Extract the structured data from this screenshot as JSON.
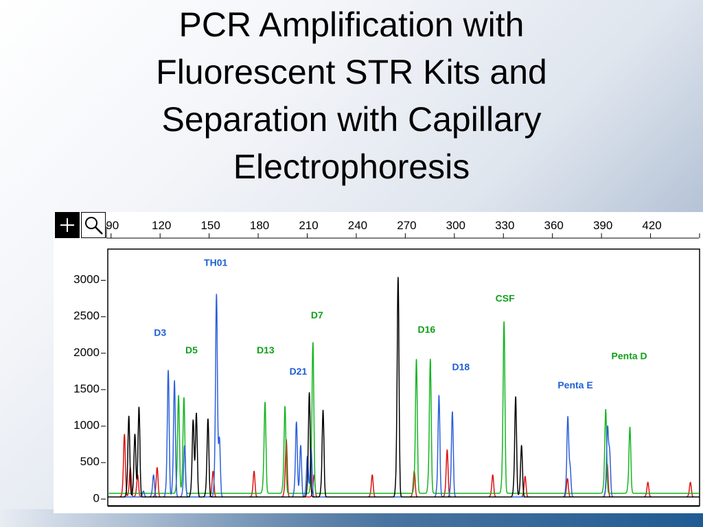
{
  "slide": {
    "title_lines": [
      "PCR Amplification with",
      "Fluorescent STR Kits and",
      "Separation with Capillary",
      "Electrophoresis"
    ]
  },
  "toolbar": {
    "crosshair_tool_icon": "crosshair-icon",
    "zoom_tool_icon": "magnifier-icon"
  },
  "chart_data": {
    "type": "line",
    "title": "",
    "xlabel": "",
    "ylabel": "",
    "x_ticks": [
      90,
      120,
      150,
      180,
      210,
      240,
      270,
      300,
      330,
      360,
      390,
      420
    ],
    "y_ticks": [
      0,
      500,
      1000,
      1500,
      2000,
      2500,
      3000
    ],
    "x_tick_labels": [
      "90",
      "120",
      "150",
      "180",
      "210",
      "240",
      "270",
      "300",
      "330",
      "360",
      "390",
      "420"
    ],
    "y_tick_labels": [
      "0",
      "500",
      "1000",
      "1500",
      "2000",
      "2500",
      "3000"
    ],
    "xlim": [
      88,
      450
    ],
    "ylim": [
      -120,
      3400
    ],
    "grid": false,
    "colors": {
      "blue": "#2b5fd9",
      "green": "#15b521",
      "black": "#000000",
      "red": "#dd1111",
      "blue_label": "#1f5fd6",
      "green_label": "#12a01a"
    },
    "series": [
      {
        "color": "blue",
        "peaks": [
          {
            "x": 109.8,
            "y": 80
          },
          {
            "x": 116.0,
            "y": 300
          },
          {
            "x": 125.0,
            "y": 1720
          },
          {
            "x": 128.8,
            "y": 1580
          },
          {
            "x": 135.0,
            "y": 700
          },
          {
            "x": 154.5,
            "y": 2720
          },
          {
            "x": 156.3,
            "y": 800
          },
          {
            "x": 203.4,
            "y": 1020
          },
          {
            "x": 206.0,
            "y": 700
          },
          {
            "x": 210.1,
            "y": 550
          },
          {
            "x": 212.4,
            "y": 650
          },
          {
            "x": 290.6,
            "y": 1380
          },
          {
            "x": 298.8,
            "y": 1160
          },
          {
            "x": 369.4,
            "y": 1050
          },
          {
            "x": 370.8,
            "y": 400
          },
          {
            "x": 393.7,
            "y": 880
          },
          {
            "x": 395.0,
            "y": 600
          }
        ],
        "baseline": 0
      },
      {
        "color": "green",
        "peaks": [
          {
            "x": 131.3,
            "y": 1330
          },
          {
            "x": 134.6,
            "y": 1300
          },
          {
            "x": 184.2,
            "y": 1240
          },
          {
            "x": 196.4,
            "y": 1180
          },
          {
            "x": 213.5,
            "y": 2050
          },
          {
            "x": 276.8,
            "y": 1820
          },
          {
            "x": 285.3,
            "y": 1820
          },
          {
            "x": 330.4,
            "y": 2330
          },
          {
            "x": 392.6,
            "y": 1140
          },
          {
            "x": 407.4,
            "y": 900
          }
        ],
        "baseline": 50
      },
      {
        "color": "black",
        "peaks": [
          {
            "x": 100.9,
            "y": 1100
          },
          {
            "x": 104.6,
            "y": 850
          },
          {
            "x": 107.1,
            "y": 1220
          },
          {
            "x": 140.2,
            "y": 1020
          },
          {
            "x": 142.2,
            "y": 1140
          },
          {
            "x": 149.3,
            "y": 1060
          },
          {
            "x": 211.3,
            "y": 1420
          },
          {
            "x": 219.7,
            "y": 1180
          },
          {
            "x": 265.6,
            "y": 2980
          },
          {
            "x": 337.5,
            "y": 1360
          },
          {
            "x": 341.1,
            "y": 700
          }
        ],
        "baseline": 0
      },
      {
        "color": "red",
        "peaks": [
          {
            "x": 98.2,
            "y": 850
          },
          {
            "x": 101.8,
            "y": 400
          },
          {
            "x": 106.3,
            "y": 300
          },
          {
            "x": 118.2,
            "y": 400
          },
          {
            "x": 152.4,
            "y": 350
          },
          {
            "x": 177.5,
            "y": 350
          },
          {
            "x": 197.2,
            "y": 780
          },
          {
            "x": 214.2,
            "y": 300
          },
          {
            "x": 249.8,
            "y": 300
          },
          {
            "x": 275.5,
            "y": 350
          },
          {
            "x": 295.6,
            "y": 640
          },
          {
            "x": 323.5,
            "y": 300
          },
          {
            "x": 343.3,
            "y": 280
          },
          {
            "x": 369.2,
            "y": 250
          },
          {
            "x": 393.5,
            "y": 450
          },
          {
            "x": 418.4,
            "y": 200
          },
          {
            "x": 444.4,
            "y": 200
          }
        ],
        "baseline": 0
      }
    ],
    "annotations": [
      {
        "text": "TH01",
        "x": 154.0,
        "y": 3170,
        "color": "blue_label"
      },
      {
        "text": "D3",
        "x": 120.0,
        "y": 2210,
        "color": "blue_label"
      },
      {
        "text": "D5",
        "x": 139.2,
        "y": 1970,
        "color": "green_label"
      },
      {
        "text": "D13",
        "x": 184.5,
        "y": 1970,
        "color": "green_label"
      },
      {
        "text": "D21",
        "x": 204.5,
        "y": 1680,
        "color": "blue_label"
      },
      {
        "text": "D7",
        "x": 216.0,
        "y": 2450,
        "color": "green_label"
      },
      {
        "text": "D16",
        "x": 283.0,
        "y": 2250,
        "color": "green_label"
      },
      {
        "text": "D18",
        "x": 304.0,
        "y": 1740,
        "color": "blue_label"
      },
      {
        "text": "CSF",
        "x": 331.0,
        "y": 2680,
        "color": "green_label"
      },
      {
        "text": "Penta D",
        "x": 407.0,
        "y": 1890,
        "color": "green_label"
      },
      {
        "text": "Penta E",
        "x": 374.0,
        "y": 1490,
        "color": "blue_label"
      }
    ]
  }
}
